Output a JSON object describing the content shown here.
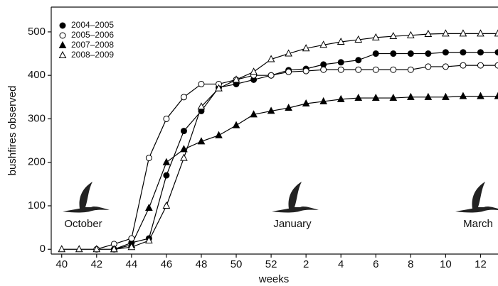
{
  "chart_data": {
    "type": "line",
    "x_label": "weeks",
    "y_label": "bushfires observed",
    "xlim": [
      39.4,
      65
    ],
    "ylim": [
      -11,
      557
    ],
    "xticks": [
      40,
      42,
      44,
      46,
      48,
      50,
      52,
      {
        "value": 54,
        "label": "2"
      },
      {
        "value": 56,
        "label": "4"
      },
      {
        "value": 58,
        "label": "6"
      },
      {
        "value": 60,
        "label": "8"
      },
      {
        "value": 62,
        "label": "10"
      },
      {
        "value": 64,
        "label": "12"
      }
    ],
    "yticks": [
      0,
      100,
      200,
      300,
      400,
      500
    ],
    "legend": "upper left",
    "annotations": [
      "October",
      "January",
      "March"
    ],
    "series": [
      {
        "name": "2004–2005",
        "color": "#000000",
        "marker": "circle",
        "filled": true,
        "x": [
          43,
          44,
          45,
          46,
          47,
          48,
          49,
          50,
          51,
          52,
          53,
          54,
          55,
          56,
          57,
          58,
          59,
          60,
          61,
          62,
          63,
          64,
          65
        ],
        "values": [
          0,
          15,
          25,
          170,
          272,
          318,
          372,
          380,
          390,
          400,
          412,
          415,
          425,
          430,
          435,
          450,
          450,
          450,
          450,
          453,
          453,
          453,
          453
        ]
      },
      {
        "name": "2005–2006",
        "color": "#000000",
        "marker": "circle",
        "filled": false,
        "x": [
          42,
          43,
          44,
          45,
          46,
          47,
          48,
          49,
          50,
          51,
          52,
          53,
          54,
          55,
          56,
          57,
          58,
          59,
          60,
          61,
          62,
          63,
          64,
          65
        ],
        "values": [
          0,
          12,
          25,
          210,
          300,
          350,
          380,
          380,
          390,
          400,
          400,
          408,
          410,
          413,
          413,
          413,
          413,
          413,
          413,
          420,
          420,
          423,
          423,
          423
        ]
      },
      {
        "name": "2007–2008",
        "color": "#000000",
        "marker": "triangle",
        "filled": true,
        "x": [
          43,
          44,
          45,
          46,
          47,
          48,
          49,
          50,
          51,
          52,
          53,
          54,
          55,
          56,
          57,
          58,
          59,
          60,
          61,
          62,
          63,
          64,
          65
        ],
        "values": [
          0,
          10,
          95,
          200,
          230,
          248,
          262,
          285,
          310,
          318,
          325,
          335,
          340,
          345,
          348,
          348,
          348,
          350,
          350,
          350,
          352,
          352,
          352
        ]
      },
      {
        "name": "2008–2009",
        "color": "#000000",
        "marker": "triangle",
        "filled": false,
        "x": [
          40,
          41,
          42,
          43,
          44,
          45,
          46,
          47,
          48,
          49,
          50,
          51,
          52,
          53,
          54,
          55,
          56,
          57,
          58,
          59,
          60,
          61,
          62,
          63,
          64,
          65
        ],
        "values": [
          0,
          0,
          0,
          0,
          5,
          20,
          100,
          210,
          328,
          370,
          390,
          408,
          437,
          450,
          462,
          470,
          477,
          482,
          487,
          490,
          492,
          495,
          496,
          496,
          496,
          496
        ]
      }
    ]
  }
}
